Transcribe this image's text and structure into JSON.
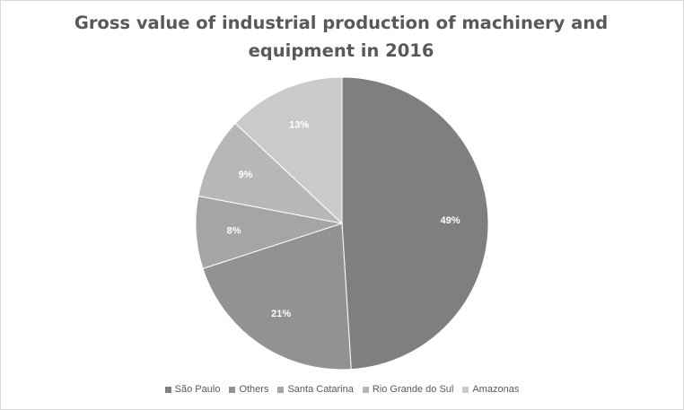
{
  "chart_data": {
    "type": "pie",
    "title": "Gross value of industrial production of machinery and equipment in 2016",
    "labels": [
      "São Paulo",
      "Others",
      "Santa Catarina",
      "Rio Grande do Sul",
      "Amazonas"
    ],
    "values": [
      49,
      21,
      8,
      9,
      13
    ],
    "data_labels": [
      "49%",
      "21%",
      "8%",
      "9%",
      "13%"
    ],
    "colors": [
      "#7f7f7f",
      "#929292",
      "#a5a5a5",
      "#b7b7b7",
      "#cacaca"
    ],
    "legend_position": "bottom",
    "start_angle_deg": 0,
    "direction": "clockwise"
  }
}
